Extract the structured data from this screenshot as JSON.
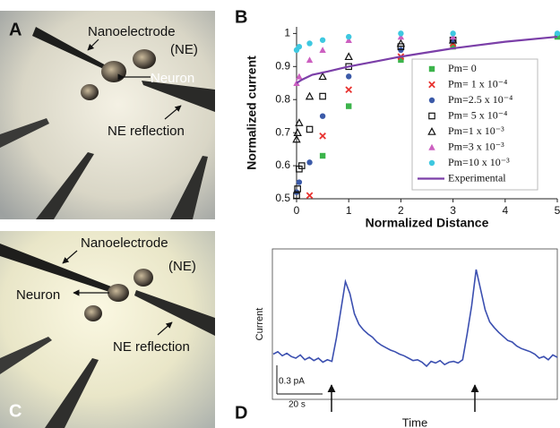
{
  "panels": {
    "a": {
      "label": "A",
      "nanoelectrode": "Nanoelectrode",
      "ne": "(NE)",
      "neuron": "Neuron",
      "reflection": "NE reflection"
    },
    "b": {
      "label": "B"
    },
    "c": {
      "label": "C",
      "nanoelectrode": "Nanoelectrode",
      "ne": "(NE)",
      "neuron": "Neuron",
      "reflection": "NE reflection"
    },
    "d": {
      "label": "D",
      "scale_current": "0.3 pA",
      "scale_time": "20 s"
    }
  },
  "chart_data": [
    {
      "type": "scatter",
      "xlabel": "Normalized Distance",
      "ylabel": "Normalized current",
      "xlim": [
        0,
        5
      ],
      "xticks": [
        0,
        1,
        2,
        3,
        4,
        5
      ],
      "ylim": [
        0.5,
        1.02
      ],
      "yticks": [
        0.5,
        0.6,
        0.7,
        0.8,
        0.9,
        1
      ],
      "series": [
        {
          "name": "Pm= 0",
          "color": "#3cb44b",
          "marker": "square-filled",
          "x": [
            0.5,
            1,
            2,
            3,
            5
          ],
          "values": [
            0.63,
            0.78,
            0.92,
            0.96,
            0.99
          ]
        },
        {
          "name": "Pm= 1 x 10⁻⁴",
          "color": "#e8322f",
          "marker": "cross",
          "x": [
            0.25,
            0.5,
            1,
            2,
            3
          ],
          "values": [
            0.51,
            0.69,
            0.83,
            0.93,
            0.97
          ]
        },
        {
          "name": "Pm=2.5 x 10⁻⁴",
          "color": "#3b5aa8",
          "marker": "circle",
          "x": [
            0,
            0.05,
            0.25,
            0.5,
            1,
            2,
            3
          ],
          "values": [
            0.52,
            0.55,
            0.61,
            0.75,
            0.87,
            0.95,
            0.98
          ]
        },
        {
          "name": "Pm= 5 x 10⁻⁴",
          "color": "#111111",
          "marker": "square-open",
          "x": [
            0,
            0.02,
            0.05,
            0.1,
            0.25,
            0.5,
            1,
            2,
            3
          ],
          "values": [
            0.51,
            0.53,
            0.59,
            0.6,
            0.71,
            0.81,
            0.9,
            0.96,
            0.98
          ]
        },
        {
          "name": "Pm=1 x 10⁻³",
          "color": "#111111",
          "marker": "triangle-open",
          "x": [
            0,
            0.02,
            0.05,
            0.25,
            0.5,
            1,
            2,
            3
          ],
          "values": [
            0.68,
            0.7,
            0.73,
            0.81,
            0.87,
            0.93,
            0.97,
            0.98
          ]
        },
        {
          "name": "Pm=3 x 10⁻³",
          "color": "#cc5fc0",
          "marker": "triangle",
          "x": [
            0,
            0.05,
            0.25,
            0.5,
            1,
            2,
            3
          ],
          "values": [
            0.85,
            0.87,
            0.92,
            0.95,
            0.98,
            0.99,
            0.99
          ]
        },
        {
          "name": "Pm=10 x 10⁻³",
          "color": "#3ec8e0",
          "marker": "circle",
          "x": [
            0,
            0.05,
            0.25,
            0.5,
            1,
            2,
            3,
            5
          ],
          "values": [
            0.95,
            0.96,
            0.97,
            0.98,
            0.99,
            1.0,
            1.0,
            1.0
          ]
        },
        {
          "name": "Experimental",
          "color": "#7b3fa8",
          "marker": "line",
          "x": [
            0,
            0.1,
            0.3,
            0.6,
            1,
            1.5,
            2,
            3,
            4,
            5
          ],
          "values": [
            0.85,
            0.86,
            0.875,
            0.885,
            0.9,
            0.915,
            0.93,
            0.955,
            0.975,
            0.99
          ]
        }
      ]
    },
    {
      "type": "line",
      "xlabel": "Time",
      "ylabel": "Current",
      "color": "#3b4fb0",
      "values": [
        0.05,
        0.08,
        0.03,
        0.06,
        0.02,
        0.0,
        0.04,
        -0.02,
        0.01,
        -0.03,
        0.0,
        -0.05,
        -0.02,
        -0.04,
        0.25,
        0.6,
        0.95,
        0.8,
        0.55,
        0.42,
        0.35,
        0.3,
        0.26,
        0.2,
        0.16,
        0.13,
        0.1,
        0.08,
        0.05,
        0.03,
        0.0,
        -0.03,
        -0.02,
        -0.05,
        -0.1,
        -0.04,
        -0.06,
        -0.03,
        -0.08,
        -0.05,
        -0.04,
        -0.06,
        -0.02,
        0.3,
        0.65,
        1.1,
        0.85,
        0.6,
        0.45,
        0.38,
        0.32,
        0.27,
        0.22,
        0.2,
        0.15,
        0.12,
        0.1,
        0.08,
        0.05,
        0.0,
        0.02,
        -0.02,
        0.04,
        0.01
      ]
    }
  ]
}
